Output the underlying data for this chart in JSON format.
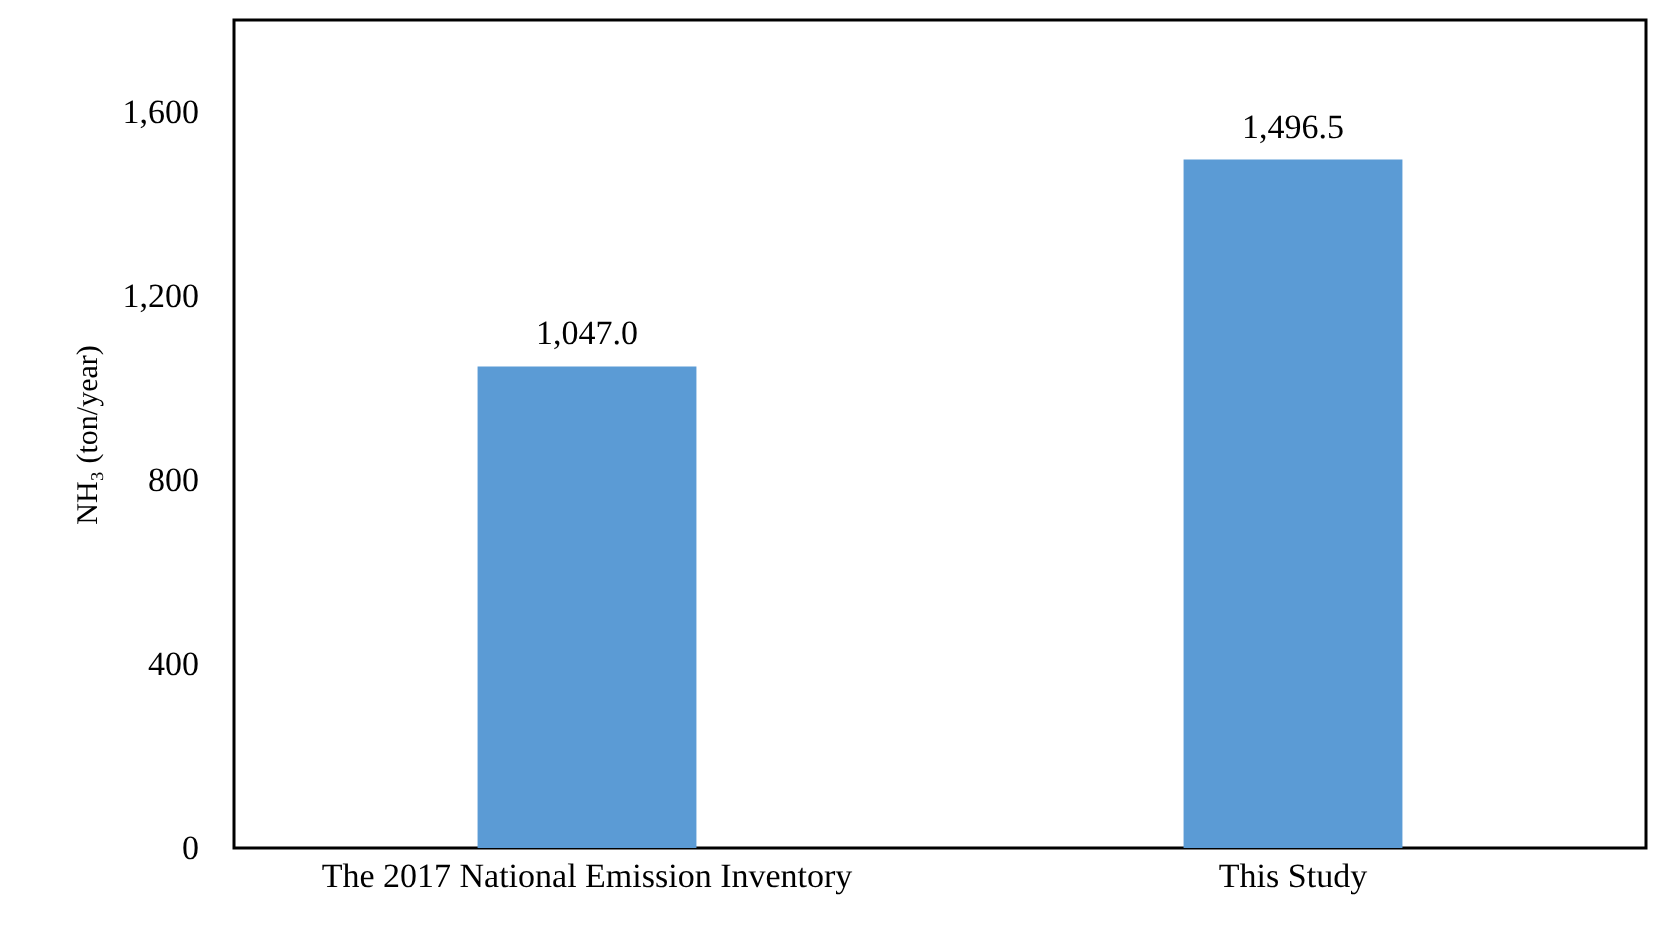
{
  "chart_data": {
    "type": "bar",
    "ylabel": "NH₃ (ton/year)",
    "categories": [
      "The 2017 National Emission Inventory",
      "This Study"
    ],
    "values": [
      1047,
      1496.5
    ],
    "color": "#5b9bd5",
    "value_labels": [
      "1,047.0",
      "1,496.5"
    ],
    "ylim": [
      0,
      1800
    ],
    "yticks": [
      0,
      400,
      800,
      {
        "value": 1200,
        "label": "1,200"
      },
      {
        "value": 1600,
        "label": "1,600"
      }
    ],
    "grid": false
  }
}
